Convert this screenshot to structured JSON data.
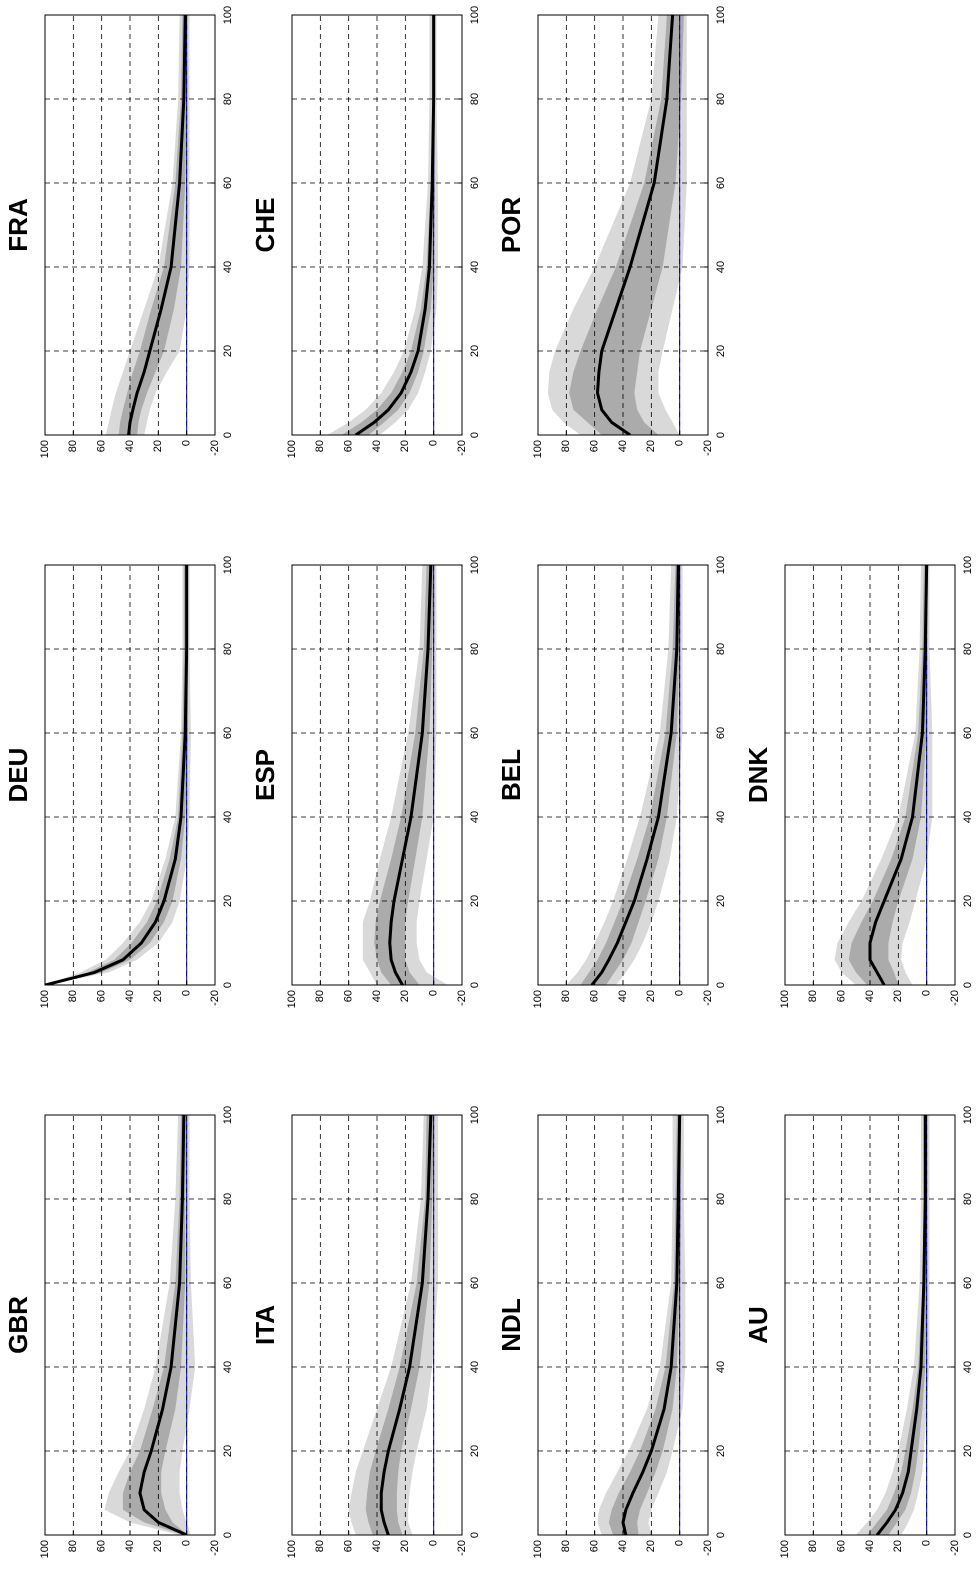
{
  "chart_data": [
    {
      "type": "line",
      "title": "GBR",
      "x": [
        0,
        3,
        6,
        10,
        15,
        20,
        30,
        40,
        60,
        80,
        100
      ],
      "values": [
        0,
        20,
        30,
        33,
        30,
        25,
        17,
        11,
        5,
        3,
        2
      ],
      "color": "#000000",
      "bands": [
        {
          "color": "#d9d9d9",
          "lower": [
            -3,
            0,
            3,
            5,
            5,
            3,
            -2,
            -6,
            -3,
            -2,
            -2
          ],
          "upper": [
            5,
            40,
            58,
            55,
            48,
            40,
            30,
            22,
            12,
            8,
            6
          ]
        },
        {
          "color": "#ababab",
          "lower": [
            -1,
            10,
            15,
            18,
            18,
            15,
            8,
            4,
            1,
            1,
            0
          ],
          "upper": [
            2,
            30,
            45,
            45,
            40,
            33,
            24,
            16,
            8,
            5,
            4
          ]
        }
      ],
      "hline": 0,
      "hline_color": "#0000ff",
      "xlim": [
        0,
        100
      ],
      "xticks": [
        0,
        20,
        40,
        60,
        80,
        100
      ],
      "ylim": [
        -20,
        100
      ],
      "yticks": [
        -20,
        0,
        20,
        40,
        60,
        80,
        100
      ],
      "grid": true
    },
    {
      "type": "line",
      "title": "DEU",
      "x": [
        0,
        3,
        6,
        10,
        15,
        20,
        30,
        40,
        60,
        80,
        100
      ],
      "values": [
        100,
        65,
        45,
        32,
        22,
        16,
        8,
        4,
        1,
        0,
        0
      ],
      "color": "#000000",
      "bands": [
        {
          "color": "#d9d9d9",
          "lower": [
            100,
            55,
            35,
            20,
            10,
            5,
            0,
            -2,
            -3,
            -2,
            -2
          ],
          "upper": [
            100,
            75,
            57,
            45,
            33,
            25,
            15,
            8,
            4,
            3,
            3
          ]
        },
        {
          "color": "#ababab",
          "lower": [
            100,
            60,
            40,
            26,
            16,
            10,
            4,
            1,
            -1,
            -1,
            -1
          ],
          "upper": [
            100,
            70,
            51,
            39,
            28,
            21,
            12,
            6,
            3,
            2,
            2
          ]
        }
      ],
      "hline": 0,
      "hline_color": "#0000ff",
      "xlim": [
        0,
        100
      ],
      "xticks": [
        0,
        20,
        40,
        60,
        80,
        100
      ],
      "ylim": [
        -20,
        100
      ],
      "yticks": [
        -20,
        0,
        20,
        40,
        60,
        80,
        100
      ],
      "grid": true
    },
    {
      "type": "line",
      "title": "FRA",
      "x": [
        0,
        3,
        6,
        10,
        15,
        20,
        30,
        40,
        60,
        80,
        100
      ],
      "values": [
        41,
        40,
        38,
        35,
        30,
        26,
        18,
        11,
        5,
        2,
        1
      ],
      "color": "#000000",
      "bands": [
        {
          "color": "#d9d9d9",
          "lower": [
            30,
            28,
            26,
            22,
            14,
            5,
            0,
            -2,
            -2,
            -2,
            -2
          ],
          "upper": [
            57,
            55,
            53,
            50,
            45,
            40,
            30,
            20,
            10,
            6,
            5
          ]
        },
        {
          "color": "#ababab",
          "lower": [
            35,
            34,
            32,
            28,
            22,
            16,
            9,
            4,
            1,
            0,
            0
          ],
          "upper": [
            48,
            47,
            45,
            42,
            38,
            33,
            25,
            16,
            8,
            4,
            3
          ]
        }
      ],
      "hline": 0,
      "hline_color": "#0000ff",
      "xlim": [
        0,
        100
      ],
      "xticks": [
        0,
        20,
        40,
        60,
        80,
        100
      ],
      "ylim": [
        -20,
        100
      ],
      "yticks": [
        -20,
        0,
        20,
        40,
        60,
        80,
        100
      ],
      "grid": true
    },
    {
      "type": "line",
      "title": "ITA",
      "x": [
        0,
        3,
        6,
        10,
        15,
        20,
        30,
        40,
        60,
        80,
        100
      ],
      "values": [
        32,
        35,
        37,
        37,
        35,
        32,
        24,
        17,
        8,
        4,
        2
      ],
      "color": "#000000",
      "bands": [
        {
          "color": "#d9d9d9",
          "lower": [
            15,
            18,
            18,
            17,
            15,
            12,
            5,
            1,
            -3,
            -3,
            -3
          ],
          "upper": [
            55,
            58,
            60,
            58,
            55,
            50,
            40,
            30,
            16,
            9,
            7
          ]
        },
        {
          "color": "#ababab",
          "lower": [
            22,
            25,
            26,
            26,
            25,
            23,
            16,
            10,
            3,
            1,
            0
          ],
          "upper": [
            43,
            46,
            48,
            47,
            45,
            41,
            32,
            24,
            12,
            6,
            5
          ]
        }
      ],
      "hline": 0,
      "hline_color": "#0000ff",
      "xlim": [
        0,
        100
      ],
      "xticks": [
        0,
        20,
        40,
        60,
        80,
        100
      ],
      "ylim": [
        -20,
        100
      ],
      "yticks": [
        -20,
        0,
        20,
        40,
        60,
        80,
        100
      ],
      "grid": true
    },
    {
      "type": "line",
      "title": "ESP",
      "x": [
        0,
        3,
        6,
        10,
        15,
        20,
        30,
        40,
        60,
        80,
        100
      ],
      "values": [
        22,
        27,
        30,
        31,
        30,
        28,
        22,
        16,
        8,
        4,
        2
      ],
      "color": "#000000",
      "bands": [
        {
          "color": "#d9d9d9",
          "lower": [
            -10,
            5,
            10,
            12,
            12,
            10,
            5,
            0,
            -2,
            -2,
            -2
          ],
          "upper": [
            40,
            45,
            50,
            50,
            50,
            45,
            38,
            30,
            18,
            10,
            8
          ]
        },
        {
          "color": "#ababab",
          "lower": [
            10,
            17,
            20,
            20,
            20,
            18,
            13,
            8,
            3,
            1,
            0
          ],
          "upper": [
            30,
            37,
            40,
            42,
            41,
            38,
            30,
            23,
            13,
            7,
            5
          ]
        }
      ],
      "hline": 0,
      "hline_color": "#0000ff",
      "xlim": [
        0,
        100
      ],
      "xticks": [
        0,
        20,
        40,
        60,
        80,
        100
      ],
      "ylim": [
        -20,
        100
      ],
      "yticks": [
        -20,
        0,
        20,
        40,
        60,
        80,
        100
      ],
      "grid": true
    },
    {
      "type": "line",
      "title": "CHE",
      "x": [
        0,
        3,
        6,
        10,
        15,
        20,
        30,
        40,
        60,
        80,
        100
      ],
      "values": [
        55,
        42,
        32,
        23,
        16,
        11,
        6,
        3,
        1,
        0,
        0
      ],
      "color": "#000000",
      "bands": [
        {
          "color": "#d9d9d9",
          "lower": [
            38,
            27,
            18,
            11,
            6,
            2,
            -2,
            -3,
            -3,
            -2,
            -2
          ],
          "upper": [
            75,
            60,
            48,
            37,
            28,
            21,
            13,
            8,
            4,
            3,
            3
          ]
        },
        {
          "color": "#ababab",
          "lower": [
            46,
            35,
            25,
            17,
            11,
            7,
            2,
            0,
            -1,
            -1,
            -1
          ],
          "upper": [
            65,
            51,
            40,
            30,
            22,
            16,
            9,
            5,
            2,
            1,
            1
          ]
        }
      ],
      "hline": 0,
      "hline_color": "#0000ff",
      "xlim": [
        0,
        100
      ],
      "xticks": [
        0,
        20,
        40,
        60,
        80,
        100
      ],
      "ylim": [
        -20,
        100
      ],
      "yticks": [
        -20,
        0,
        20,
        40,
        60,
        80,
        100
      ],
      "grid": true
    },
    {
      "type": "line",
      "title": "NDL",
      "x": [
        0,
        3,
        6,
        10,
        15,
        20,
        30,
        40,
        60,
        80,
        100
      ],
      "values": [
        38,
        40,
        38,
        33,
        26,
        20,
        11,
        6,
        2,
        1,
        0
      ],
      "color": "#000000",
      "bands": [
        {
          "color": "#d9d9d9",
          "lower": [
            20,
            22,
            20,
            15,
            9,
            5,
            -2,
            -4,
            -4,
            -3,
            -3
          ],
          "upper": [
            55,
            58,
            57,
            52,
            44,
            36,
            23,
            14,
            6,
            5,
            5
          ]
        },
        {
          "color": "#ababab",
          "lower": [
            29,
            30,
            28,
            23,
            17,
            12,
            5,
            2,
            0,
            -1,
            -1
          ],
          "upper": [
            47,
            50,
            48,
            43,
            35,
            28,
            17,
            10,
            4,
            3,
            2
          ]
        }
      ],
      "hline": 0,
      "hline_color": "#0000ff",
      "xlim": [
        0,
        100
      ],
      "xticks": [
        0,
        20,
        40,
        60,
        80,
        100
      ],
      "ylim": [
        -20,
        100
      ],
      "yticks": [
        -20,
        0,
        20,
        40,
        60,
        80,
        100
      ],
      "grid": true
    },
    {
      "type": "line",
      "title": "BEL",
      "x": [
        0,
        3,
        6,
        10,
        15,
        20,
        30,
        40,
        60,
        80,
        100
      ],
      "values": [
        62,
        55,
        50,
        44,
        38,
        32,
        23,
        15,
        6,
        2,
        1
      ],
      "color": "#000000",
      "bands": [
        {
          "color": "#d9d9d9",
          "lower": [
            45,
            38,
            32,
            26,
            20,
            15,
            7,
            2,
            -2,
            -2,
            -2
          ],
          "upper": [
            80,
            72,
            66,
            60,
            53,
            47,
            37,
            28,
            14,
            8,
            6
          ]
        },
        {
          "color": "#ababab",
          "lower": [
            52,
            46,
            40,
            34,
            29,
            24,
            15,
            9,
            2,
            0,
            0
          ],
          "upper": [
            70,
            64,
            58,
            52,
            46,
            40,
            30,
            21,
            10,
            5,
            3
          ]
        }
      ],
      "hline": 0,
      "hline_color": "#0000ff",
      "xlim": [
        0,
        100
      ],
      "xticks": [
        0,
        20,
        40,
        60,
        80,
        100
      ],
      "ylim": [
        -20,
        100
      ],
      "yticks": [
        -20,
        0,
        20,
        40,
        60,
        80,
        100
      ],
      "grid": true
    },
    {
      "type": "line",
      "title": "POR",
      "x": [
        0,
        3,
        6,
        10,
        15,
        20,
        30,
        40,
        60,
        80,
        100
      ],
      "values": [
        35,
        48,
        55,
        58,
        57,
        55,
        45,
        35,
        18,
        9,
        5
      ],
      "color": "#000000",
      "bands": [
        {
          "color": "#d9d9d9",
          "lower": [
            0,
            5,
            10,
            15,
            15,
            12,
            5,
            -2,
            -5,
            -5,
            -5
          ],
          "upper": [
            70,
            82,
            90,
            93,
            92,
            88,
            75,
            60,
            35,
            20,
            15
          ]
        },
        {
          "color": "#ababab",
          "lower": [
            15,
            25,
            30,
            32,
            30,
            28,
            20,
            12,
            3,
            -1,
            -3
          ],
          "upper": [
            55,
            65,
            75,
            78,
            75,
            70,
            58,
            45,
            25,
            13,
            9
          ]
        }
      ],
      "hline": 0,
      "hline_color": "#0000ff",
      "xlim": [
        0,
        100
      ],
      "xticks": [
        0,
        20,
        40,
        60,
        80,
        100
      ],
      "ylim": [
        -20,
        100
      ],
      "yticks": [
        -20,
        0,
        20,
        40,
        60,
        80,
        100
      ],
      "grid": true
    },
    {
      "type": "line",
      "title": "AU",
      "x": [
        0,
        3,
        6,
        10,
        15,
        20,
        30,
        40,
        60,
        80,
        100
      ],
      "values": [
        35,
        28,
        22,
        17,
        13,
        11,
        7,
        4,
        2,
        1,
        1
      ],
      "color": "#000000",
      "bands": [
        {
          "color": "#d9d9d9",
          "lower": [
            18,
            13,
            9,
            6,
            3,
            2,
            0,
            -2,
            -2,
            -2,
            -2
          ],
          "upper": [
            50,
            42,
            35,
            29,
            24,
            20,
            14,
            9,
            5,
            4,
            4
          ]
        },
        {
          "color": "#ababab",
          "lower": [
            27,
            21,
            15,
            11,
            8,
            6,
            3,
            1,
            0,
            0,
            0
          ],
          "upper": [
            42,
            35,
            28,
            23,
            18,
            15,
            10,
            6,
            3,
            2,
            2
          ]
        }
      ],
      "hline": 0,
      "hline_color": "#0000ff",
      "xlim": [
        0,
        100
      ],
      "xticks": [
        0,
        20,
        40,
        60,
        80,
        100
      ],
      "ylim": [
        -20,
        100
      ],
      "yticks": [
        -20,
        0,
        20,
        40,
        60,
        80,
        100
      ],
      "grid": true
    },
    {
      "type": "line",
      "title": "DNK",
      "x": [
        0,
        3,
        6,
        10,
        15,
        20,
        30,
        40,
        60,
        80,
        100
      ],
      "values": [
        30,
        35,
        40,
        40,
        36,
        30,
        18,
        10,
        3,
        1,
        0
      ],
      "color": "#000000",
      "bands": [
        {
          "color": "#d9d9d9",
          "lower": [
            10,
            15,
            18,
            17,
            12,
            8,
            0,
            -4,
            -4,
            -2,
            -2
          ],
          "upper": [
            50,
            60,
            65,
            63,
            55,
            46,
            32,
            20,
            8,
            5,
            4
          ]
        },
        {
          "color": "#ababab",
          "lower": [
            20,
            23,
            27,
            27,
            24,
            20,
            10,
            4,
            0,
            0,
            -1
          ],
          "upper": [
            42,
            50,
            55,
            53,
            46,
            38,
            25,
            15,
            6,
            3,
            2
          ]
        }
      ],
      "hline": 0,
      "hline_color": "#0000ff",
      "xlim": [
        0,
        100
      ],
      "xticks": [
        0,
        20,
        40,
        60,
        80,
        100
      ],
      "ylim": [
        -20,
        100
      ],
      "yticks": [
        -20,
        0,
        20,
        40,
        60,
        80,
        100
      ],
      "grid": true
    }
  ]
}
